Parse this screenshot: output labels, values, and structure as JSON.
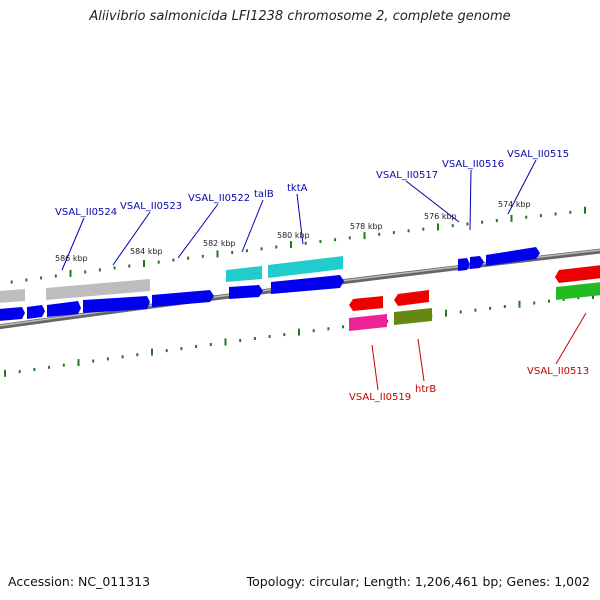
{
  "title": "Aliivibrio salmonicida LFI1238 chromosome 2, complete genome",
  "footer": {
    "accession": "Accession: NC_011313",
    "summary": "Topology: circular; Length: 1,206,461 bp; Genes: 1,002"
  },
  "scale_labels": [
    "586 kbp",
    "584 kbp",
    "582 kbp",
    "580 kbp",
    "578 kbp",
    "576 kbp",
    "574 kbp"
  ],
  "labels_top": [
    "VSAL_II0524",
    "VSAL_II0523",
    "VSAL_II0522",
    "talB",
    "tktA",
    "VSAL_II0517",
    "VSAL_II0516",
    "VSAL_II0515"
  ],
  "labels_bottom": [
    "VSAL_II0519",
    "htrB",
    "VSAL_II0513"
  ],
  "colors": {
    "blue": "#0000ee",
    "gray": "#b8b8b8",
    "cyan": "#22cccc",
    "red": "#ee0000",
    "magenta": "#ee2299",
    "olive": "#668811",
    "green": "#22bb22",
    "tick": "#227722",
    "backbone": "#888888"
  }
}
